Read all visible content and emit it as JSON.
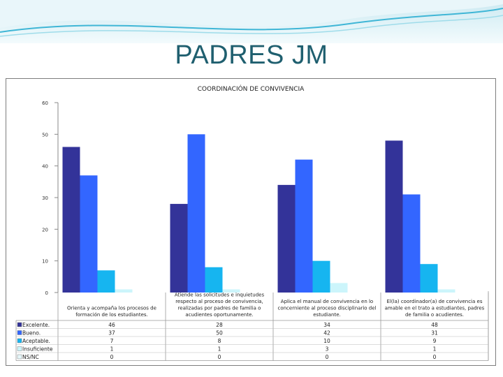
{
  "slide": {
    "title": "PADRES JM"
  },
  "colors": {
    "header_light": "#e3f2f6",
    "header_accent": "#3fb6d6",
    "title": "#1f5f6f"
  },
  "chart_data": {
    "type": "bar",
    "title": "COORDINACIÓN DE CONVIVENCIA",
    "xlabel": "",
    "ylabel": "",
    "ylim": [
      0,
      60
    ],
    "yticks": [
      0,
      10,
      20,
      30,
      40,
      50,
      60
    ],
    "grid": false,
    "legend": "table-left",
    "categories": [
      [
        "Orienta y acompaña los procesos de",
        "formación de los estudiantes."
      ],
      [
        "Atiende las solicitudes e inquietudes",
        "respecto al proceso de convivencia,",
        "realizadas por padres de familia o",
        "acudientes oportunamente."
      ],
      [
        "Aplica el manual de convivencia en lo",
        "concerniente al proceso disciplinario del",
        "estudiante."
      ],
      [
        "El(la) coordinador(a) de convivencia es",
        "amable en el trato a estudiantes, padres",
        "de familia o acudientes."
      ]
    ],
    "series": [
      {
        "name": "Excelente.",
        "color": "#333399",
        "values": [
          46,
          28,
          34,
          48
        ]
      },
      {
        "name": "Bueno.",
        "color": "#3366ff",
        "values": [
          37,
          50,
          42,
          31
        ]
      },
      {
        "name": "Aceptable.",
        "color": "#16b5f0",
        "values": [
          7,
          8,
          10,
          9
        ]
      },
      {
        "name": "Insuficiente",
        "color": "#ccf5fb",
        "values": [
          1,
          1,
          3,
          1
        ]
      },
      {
        "name": "NS/NC",
        "color": "#e6f7fa",
        "values": [
          0,
          0,
          0,
          0
        ]
      }
    ]
  }
}
